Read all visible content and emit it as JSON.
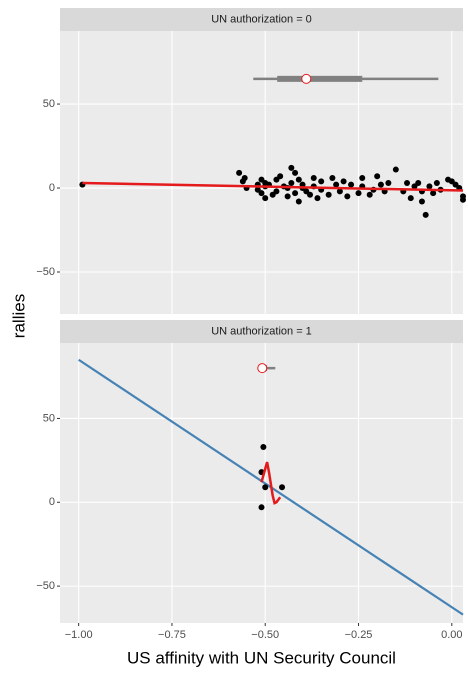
{
  "chart_data": [
    {
      "type": "scatter",
      "strip": "UN authorization = 0",
      "y_label": "rallies",
      "xlim": [
        -1.05,
        0.03
      ],
      "ylim": [
        -75,
        93.5
      ],
      "xticks": [
        {
          "value": -1,
          "label": "−1.00"
        },
        {
          "value": -0.75,
          "label": "−0.75"
        },
        {
          "value": -0.5,
          "label": "−0.50"
        },
        {
          "value": -0.25,
          "label": "−0.25"
        },
        {
          "value": 0,
          "label": "0.00"
        }
      ],
      "yticks": [
        {
          "value": -50,
          "label": "−50"
        },
        0,
        50
      ],
      "points": {
        "color": "#000000",
        "x": [
          -0.99,
          -0.57,
          -0.56,
          -0.555,
          -0.55,
          -0.52,
          -0.52,
          -0.51,
          -0.51,
          -0.5,
          -0.5,
          -0.5,
          -0.49,
          -0.48,
          -0.47,
          -0.47,
          -0.46,
          -0.45,
          -0.44,
          -0.44,
          -0.43,
          -0.43,
          -0.42,
          -0.42,
          -0.41,
          -0.41,
          -0.4,
          -0.4,
          -0.39,
          -0.38,
          -0.37,
          -0.37,
          -0.36,
          -0.35,
          -0.35,
          -0.33,
          -0.32,
          -0.31,
          -0.3,
          -0.29,
          -0.28,
          -0.27,
          -0.25,
          -0.24,
          -0.24,
          -0.22,
          -0.21,
          -0.2,
          -0.19,
          -0.18,
          -0.17,
          -0.15,
          -0.13,
          -0.12,
          -0.11,
          -0.1,
          -0.09,
          -0.08,
          -0.08,
          -0.07,
          -0.06,
          -0.05,
          -0.04,
          -0.03,
          -0.01,
          0.0,
          0.01,
          0.02,
          0.03,
          0.03
        ],
        "y": [
          2,
          9,
          4,
          6,
          0,
          -1,
          2,
          -3,
          5,
          -6,
          1,
          3,
          2,
          -4,
          5,
          -2,
          7,
          1,
          0,
          -5,
          3,
          12,
          -3,
          9,
          5,
          -8,
          2,
          0,
          -2,
          -4,
          6,
          1,
          -6,
          4,
          -1,
          -4,
          6,
          2,
          -2,
          4,
          -5,
          2,
          -3,
          6,
          1,
          -4,
          -1,
          7,
          2,
          -2,
          3,
          11,
          -2,
          3,
          -6,
          1,
          3,
          -8,
          -2,
          -16,
          1,
          -3,
          3,
          -1,
          5,
          4,
          2,
          0,
          -5,
          -7
        ]
      },
      "fit": {
        "color": "#e41a1c",
        "x": [
          -0.99,
          0.03
        ],
        "y": [
          3,
          -1.5
        ]
      },
      "boxplot": {
        "y": 65,
        "whislo": -0.532,
        "q1": -0.468,
        "q3": -0.24,
        "whishi": -0.036,
        "mean": -0.39
      }
    },
    {
      "type": "scatter",
      "strip": "UN authorization = 1",
      "x_label": "US affinity with UN Security Council",
      "xlim": [
        -1.05,
        0.03
      ],
      "ylim": [
        -72,
        95
      ],
      "xticks": [
        {
          "value": -1,
          "label": "−1.00"
        },
        {
          "value": -0.75,
          "label": "−0.75"
        },
        {
          "value": -0.5,
          "label": "−0.50"
        },
        {
          "value": -0.25,
          "label": "−0.25"
        },
        {
          "value": 0,
          "label": "0.00"
        }
      ],
      "yticks": [
        {
          "value": -50,
          "label": "−50"
        },
        0,
        50
      ],
      "points": {
        "color": "#000000",
        "x": [
          -0.51,
          -0.505,
          -0.51,
          -0.5,
          -0.455
        ],
        "y": [
          -3,
          33,
          18,
          9,
          9
        ]
      },
      "fit": {
        "color": "#e41a1c",
        "x": [
          -0.51,
          -0.5,
          -0.495,
          -0.49,
          -0.48,
          -0.475,
          -0.47,
          -0.46
        ],
        "y": [
          12,
          20,
          24,
          18,
          4,
          -0.5,
          0,
          3
        ]
      },
      "linear": {
        "color": "#4682b4",
        "x": [
          -1,
          0.03
        ],
        "y": [
          85,
          -67
        ]
      },
      "boxplot": {
        "y": 80,
        "whislo": -0.508,
        "q1": -0.508,
        "q3": -0.495,
        "whishi": -0.473,
        "mean": -0.508
      }
    }
  ]
}
